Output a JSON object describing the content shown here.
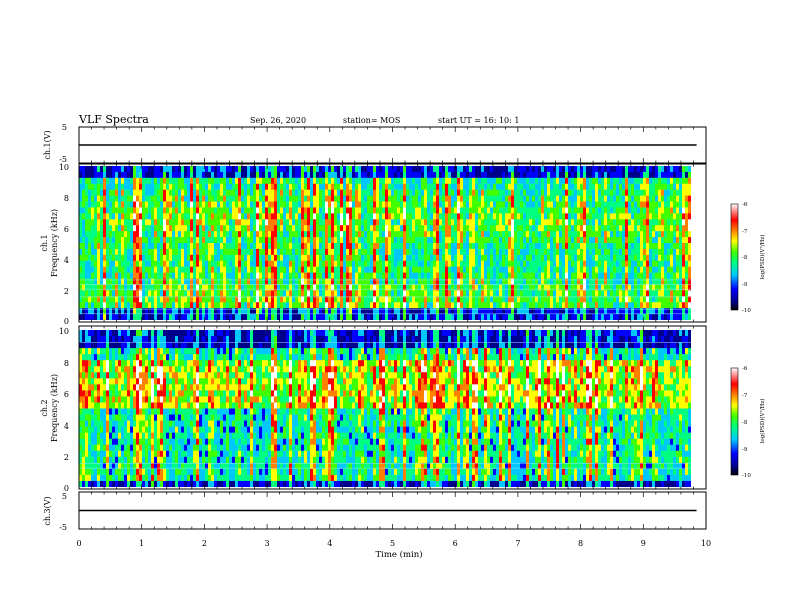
{
  "header": {
    "title": "VLF Spectra",
    "date": "Sep. 26, 2020",
    "station": "station= MOS",
    "start_ut": "start  UT =   16: 10: 1"
  },
  "chart_data": [
    {
      "type": "line",
      "ylabel": "ch.1(V)",
      "ylim": [
        -5,
        5
      ],
      "ytick_labels": [
        "5",
        "-5"
      ],
      "series": [
        {
          "x": [
            0,
            9.85
          ],
          "values": [
            0,
            0
          ]
        }
      ]
    },
    {
      "type": "heatmap",
      "ylabel_top": "ch.1",
      "ylabel": "Frequency  (kHz)",
      "ylim": [
        0,
        10
      ],
      "ytick_labels": [
        "10",
        "8",
        "6",
        "4",
        "2",
        "0"
      ],
      "colorbar": {
        "label": "log(PSD)(V²/Hz)",
        "range": [
          -10,
          -6
        ],
        "tick_labels": [
          "-6",
          "-7",
          "-8",
          "-9",
          "-10"
        ]
      }
    },
    {
      "type": "heatmap",
      "ylabel_top": "ch.2",
      "ylabel": "Frequency  (kHz)",
      "ylim": [
        0,
        10
      ],
      "ytick_labels": [
        "10",
        "8",
        "6",
        "4",
        "2",
        "0"
      ],
      "colorbar": {
        "label": "log(PSD)(V²/Hz)",
        "range": [
          -10,
          -6
        ],
        "tick_labels": [
          "-6",
          "-7",
          "-8",
          "-9",
          "-10"
        ]
      }
    },
    {
      "type": "line",
      "ylabel": "ch.3(V)",
      "ylim": [
        -5,
        5
      ],
      "ytick_labels": [
        "5",
        "-5"
      ],
      "series": [
        {
          "x": [
            0,
            9.85
          ],
          "values": [
            0,
            0
          ]
        }
      ]
    }
  ],
  "xaxis": {
    "label": "Time  (min)",
    "xlim": [
      0,
      10
    ],
    "tick_labels": [
      "0",
      "1",
      "2",
      "3",
      "4",
      "5",
      "6",
      "7",
      "8",
      "9",
      "10"
    ]
  }
}
